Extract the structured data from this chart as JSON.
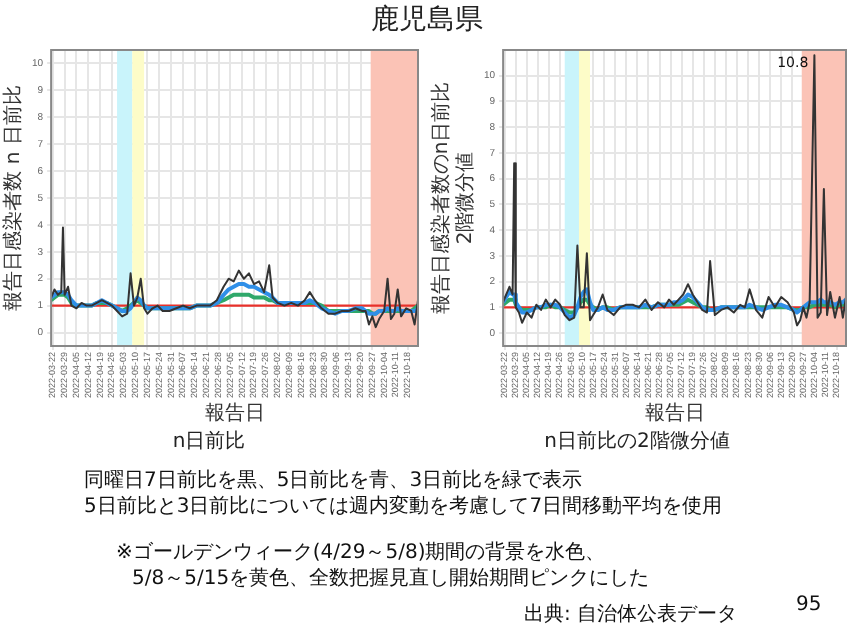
{
  "chart_data": [
    {
      "type": "line",
      "title": "n日前比",
      "xlabel": "報告日",
      "ylabel": "報告日感染者数 n 日前比",
      "x": [
        "2022-03-21",
        "2022-03-23",
        "2022-03-25",
        "2022-03-27",
        "2022-03-28",
        "2022-03-29",
        "2022-03-31",
        "2022-04-02",
        "2022-04-05",
        "2022-04-08",
        "2022-04-11",
        "2022-04-14",
        "2022-04-17",
        "2022-04-20",
        "2022-04-23",
        "2022-04-26",
        "2022-04-29",
        "2022-05-02",
        "2022-05-05",
        "2022-05-07",
        "2022-05-09",
        "2022-05-11",
        "2022-05-13",
        "2022-05-15",
        "2022-05-17",
        "2022-05-20",
        "2022-05-23",
        "2022-05-26",
        "2022-05-30",
        "2022-06-03",
        "2022-06-07",
        "2022-06-11",
        "2022-06-15",
        "2022-06-19",
        "2022-06-23",
        "2022-06-27",
        "2022-07-01",
        "2022-07-04",
        "2022-07-07",
        "2022-07-10",
        "2022-07-13",
        "2022-07-16",
        "2022-07-19",
        "2022-07-22",
        "2022-07-25",
        "2022-07-28",
        "2022-07-30",
        "2022-08-02",
        "2022-08-06",
        "2022-08-10",
        "2022-08-14",
        "2022-08-18",
        "2022-08-21",
        "2022-08-24",
        "2022-08-28",
        "2022-09-01",
        "2022-09-05",
        "2022-09-09",
        "2022-09-13",
        "2022-09-17",
        "2022-09-21",
        "2022-09-23",
        "2022-09-25",
        "2022-09-27",
        "2022-09-29",
        "2022-10-01",
        "2022-10-04",
        "2022-10-06",
        "2022-10-08",
        "2022-10-10",
        "2022-10-12",
        "2022-10-14",
        "2022-10-17",
        "2022-10-20",
        "2022-10-22",
        "2022-10-24"
      ],
      "series": [
        {
          "color": "#333333",
          "values": [
            1.3,
            1.6,
            1.4,
            1.5,
            3.9,
            1.4,
            1.7,
            1.0,
            0.9,
            1.1,
            1.0,
            1.0,
            1.1,
            1.2,
            1.1,
            1.0,
            0.8,
            0.6,
            0.7,
            2.2,
            1.0,
            1.3,
            2.0,
            0.9,
            0.7,
            0.9,
            1.0,
            0.8,
            0.8,
            0.9,
            1.0,
            0.9,
            1.0,
            1.0,
            1.0,
            1.2,
            1.7,
            2.0,
            1.9,
            2.3,
            2.0,
            2.2,
            1.8,
            1.9,
            1.5,
            2.5,
            1.3,
            1.1,
            1.0,
            1.1,
            1.0,
            1.2,
            1.5,
            1.2,
            0.9,
            0.7,
            0.7,
            0.8,
            0.8,
            0.9,
            0.8,
            0.8,
            0.3,
            0.6,
            0.2,
            0.5,
            0.8,
            2.0,
            0.5,
            0.7,
            1.6,
            0.6,
            0.9,
            0.8,
            0.3,
            1.2
          ]
        },
        {
          "color": "#2f8fe8",
          "values": [
            1.3,
            1.4,
            1.5,
            1.5,
            1.5,
            1.5,
            1.4,
            1.2,
            1.0,
            1.0,
            1.0,
            1.0,
            1.1,
            1.2,
            1.1,
            1.0,
            0.9,
            0.8,
            0.8,
            0.9,
            1.1,
            1.3,
            1.2,
            1.0,
            0.9,
            0.9,
            0.9,
            0.9,
            0.9,
            0.9,
            0.9,
            0.9,
            1.0,
            1.0,
            1.0,
            1.1,
            1.4,
            1.6,
            1.7,
            1.8,
            1.8,
            1.7,
            1.7,
            1.6,
            1.5,
            1.4,
            1.3,
            1.1,
            1.1,
            1.1,
            1.1,
            1.1,
            1.2,
            1.1,
            0.9,
            0.8,
            0.7,
            0.8,
            0.8,
            0.9,
            0.9,
            0.8,
            0.7,
            0.7,
            0.7,
            0.8,
            0.8,
            0.9,
            0.8,
            0.8,
            0.9,
            0.8,
            0.8,
            0.8,
            0.8,
            0.9
          ]
        },
        {
          "color": "#2fa86a",
          "values": [
            1.2,
            1.3,
            1.4,
            1.4,
            1.4,
            1.4,
            1.3,
            1.1,
            1.0,
            1.0,
            1.0,
            1.0,
            1.1,
            1.1,
            1.1,
            1.0,
            0.9,
            0.8,
            0.9,
            1.0,
            1.1,
            1.2,
            1.1,
            1.0,
            0.9,
            0.9,
            0.9,
            0.9,
            0.9,
            0.9,
            0.9,
            0.9,
            1.0,
            1.0,
            1.0,
            1.1,
            1.2,
            1.3,
            1.4,
            1.4,
            1.4,
            1.4,
            1.3,
            1.3,
            1.3,
            1.2,
            1.2,
            1.1,
            1.1,
            1.1,
            1.1,
            1.1,
            1.1,
            1.1,
            1.0,
            0.8,
            0.8,
            0.8,
            0.8,
            0.8,
            0.8,
            0.8,
            0.8,
            0.7,
            0.7,
            0.8,
            0.8,
            0.8,
            0.8,
            0.8,
            0.8,
            0.8,
            0.8,
            0.8,
            0.9,
            1.0
          ]
        }
      ],
      "xlim": [
        "2022-03-21",
        "2022-10-24"
      ],
      "xticks": [
        "2022-03-22",
        "2022-03-29",
        "2022-04-05",
        "2022-04-12",
        "2022-04-19",
        "2022-04-26",
        "2022-05-03",
        "2022-05-10",
        "2022-05-17",
        "2022-05-24",
        "2022-05-31",
        "2022-06-07",
        "2022-06-14",
        "2022-06-21",
        "2022-06-28",
        "2022-07-05",
        "2022-07-12",
        "2022-07-19",
        "2022-07-26",
        "2022-08-02",
        "2022-08-09",
        "2022-08-16",
        "2022-08-23",
        "2022-08-30",
        "2022-09-06",
        "2022-09-13",
        "2022-09-20",
        "2022-09-27",
        "2022-10-04",
        "2022-10-11",
        "2022-10-18"
      ],
      "ylim": [
        -0.5,
        10.5
      ],
      "yticks": [
        0,
        1,
        2,
        3,
        4,
        5,
        6,
        7,
        8,
        9,
        10
      ],
      "grid": true,
      "ref_lines": [
        {
          "axis": "y",
          "value": 1,
          "color": "#e8302a"
        }
      ],
      "bands": [
        {
          "axis": "x",
          "from": "2022-04-29",
          "to": "2022-05-08",
          "color": "#c9f4fb"
        },
        {
          "axis": "x",
          "from": "2022-05-08",
          "to": "2022-05-15",
          "color": "#fdfcc8"
        },
        {
          "axis": "x",
          "from": "2022-09-26",
          "to": "2022-10-24",
          "color": "#fbc3b6"
        }
      ]
    },
    {
      "type": "line",
      "title": "n日前比の2階微分値",
      "xlabel": "報告日",
      "ylabel": "報告日感染者数のn日前比\n2階微分値",
      "x": [
        "2022-03-21",
        "2022-03-23",
        "2022-03-25",
        "2022-03-27",
        "2022-03-28",
        "2022-03-29",
        "2022-03-31",
        "2022-04-02",
        "2022-04-05",
        "2022-04-08",
        "2022-04-11",
        "2022-04-14",
        "2022-04-17",
        "2022-04-20",
        "2022-04-23",
        "2022-04-26",
        "2022-04-29",
        "2022-05-02",
        "2022-05-05",
        "2022-05-07",
        "2022-05-09",
        "2022-05-11",
        "2022-05-13",
        "2022-05-15",
        "2022-05-17",
        "2022-05-20",
        "2022-05-23",
        "2022-05-26",
        "2022-05-30",
        "2022-06-03",
        "2022-06-07",
        "2022-06-11",
        "2022-06-15",
        "2022-06-19",
        "2022-06-23",
        "2022-06-27",
        "2022-07-01",
        "2022-07-04",
        "2022-07-07",
        "2022-07-10",
        "2022-07-13",
        "2022-07-16",
        "2022-07-19",
        "2022-07-22",
        "2022-07-25",
        "2022-07-28",
        "2022-07-30",
        "2022-08-02",
        "2022-08-06",
        "2022-08-10",
        "2022-08-14",
        "2022-08-18",
        "2022-08-21",
        "2022-08-24",
        "2022-08-28",
        "2022-09-01",
        "2022-09-05",
        "2022-09-09",
        "2022-09-13",
        "2022-09-17",
        "2022-09-21",
        "2022-09-23",
        "2022-09-25",
        "2022-09-27",
        "2022-09-29",
        "2022-10-01",
        "2022-10-04",
        "2022-10-06",
        "2022-10-08",
        "2022-10-10",
        "2022-10-12",
        "2022-10-14",
        "2022-10-17",
        "2022-10-20",
        "2022-10-22",
        "2022-10-24"
      ],
      "series": [
        {
          "color": "#333333",
          "values": [
            1.2,
            1.5,
            1.8,
            1.5,
            6.6,
            1.0,
            0.8,
            0.4,
            0.8,
            0.6,
            1.1,
            0.9,
            1.3,
            1.0,
            1.3,
            1.1,
            0.7,
            0.5,
            0.6,
            3.4,
            1.0,
            1.0,
            3.1,
            0.5,
            0.7,
            1.0,
            1.5,
            0.9,
            0.7,
            1.0,
            1.1,
            1.1,
            1.0,
            1.3,
            0.9,
            1.2,
            1.0,
            1.3,
            1.1,
            1.3,
            1.5,
            1.9,
            1.5,
            1.2,
            0.9,
            0.8,
            2.8,
            0.7,
            0.9,
            1.0,
            0.8,
            1.1,
            1.0,
            1.7,
            0.9,
            0.6,
            1.4,
            1.0,
            1.4,
            1.2,
            0.8,
            0.3,
            0.5,
            1.0,
            0.6,
            1.2,
            10.8,
            0.6,
            0.8,
            5.6,
            0.7,
            1.6,
            0.6,
            1.4,
            0.6,
            1.4
          ]
        },
        {
          "color": "#2f8fe8",
          "values": [
            1.2,
            1.4,
            1.6,
            1.5,
            1.5,
            1.2,
            1.0,
            0.8,
            0.8,
            0.9,
            1.0,
            1.0,
            1.1,
            1.1,
            1.1,
            1.0,
            0.8,
            0.6,
            0.7,
            1.0,
            1.4,
            1.6,
            1.7,
            1.2,
            0.9,
            0.9,
            1.0,
            0.9,
            0.9,
            1.0,
            1.0,
            1.0,
            1.0,
            1.1,
            1.0,
            1.1,
            1.1,
            1.1,
            1.2,
            1.2,
            1.3,
            1.5,
            1.4,
            1.2,
            1.0,
            0.9,
            0.9,
            0.9,
            1.0,
            1.0,
            1.0,
            1.0,
            1.0,
            1.1,
            1.0,
            0.9,
            1.0,
            1.1,
            1.1,
            1.0,
            0.9,
            0.8,
            0.9,
            1.0,
            1.1,
            1.2,
            1.2,
            1.2,
            1.3,
            1.2,
            1.2,
            1.2,
            1.1,
            1.2,
            1.2,
            1.3
          ]
        },
        {
          "color": "#2fa86a",
          "values": [
            1.1,
            1.2,
            1.3,
            1.3,
            1.3,
            1.1,
            1.0,
            0.9,
            0.9,
            0.9,
            1.0,
            1.0,
            1.0,
            1.1,
            1.0,
            1.0,
            0.9,
            0.8,
            0.8,
            1.0,
            1.2,
            1.3,
            1.3,
            1.1,
            1.0,
            0.9,
            1.0,
            1.0,
            0.9,
            1.0,
            1.0,
            1.0,
            1.0,
            1.0,
            1.0,
            1.1,
            1.1,
            1.1,
            1.1,
            1.1,
            1.2,
            1.3,
            1.2,
            1.1,
            1.0,
            1.0,
            0.9,
            0.9,
            1.0,
            1.0,
            1.0,
            1.0,
            1.0,
            1.0,
            1.0,
            1.0,
            1.0,
            1.0,
            1.0,
            1.0,
            0.9,
            0.9,
            0.9,
            1.0,
            1.0,
            1.0,
            1.1,
            1.1,
            1.1,
            1.1,
            1.1,
            1.1,
            1.0,
            1.1,
            1.1,
            1.1
          ]
        }
      ],
      "xlim": [
        "2022-03-21",
        "2022-10-24"
      ],
      "xticks": [
        "2022-03-22",
        "2022-03-29",
        "2022-04-05",
        "2022-04-12",
        "2022-04-19",
        "2022-04-26",
        "2022-05-03",
        "2022-05-10",
        "2022-05-17",
        "2022-05-24",
        "2022-05-31",
        "2022-06-07",
        "2022-06-14",
        "2022-06-21",
        "2022-06-28",
        "2022-07-05",
        "2022-07-12",
        "2022-07-19",
        "2022-07-26",
        "2022-08-02",
        "2022-08-09",
        "2022-08-16",
        "2022-08-23",
        "2022-08-30",
        "2022-09-06",
        "2022-09-13",
        "2022-09-20",
        "2022-09-27",
        "2022-10-04",
        "2022-10-11",
        "2022-10-18"
      ],
      "ylim": [
        -0.5,
        11
      ],
      "yticks": [
        0,
        1,
        2,
        3,
        4,
        5,
        6,
        7,
        8,
        9,
        10
      ],
      "grid": true,
      "ref_lines": [
        {
          "axis": "y",
          "value": 1,
          "color": "#e8302a"
        }
      ],
      "bands": [
        {
          "axis": "x",
          "from": "2022-04-29",
          "to": "2022-05-08",
          "color": "#c9f4fb"
        },
        {
          "axis": "x",
          "from": "2022-05-08",
          "to": "2022-05-15",
          "color": "#fdfcc8"
        },
        {
          "axis": "x",
          "from": "2022-09-26",
          "to": "2022-10-24",
          "color": "#fbc3b6"
        }
      ],
      "annotations": [
        {
          "text": "10.8",
          "x": "2022-10-04",
          "y": 10.8
        }
      ]
    },
    {
      "type": "other",
      "title": "鹿児島県",
      "annotations": [
        "同曜日7日前比を黒、5日前比を青、3日前比を緑で表示",
        "5日前比と3日前比については週内変動を考慮して7日間移動平均を使用",
        "※ゴールデンウィーク(4/29～5/8)期間の背景を水色、",
        "5/8～5/15を黄色、全数把握見直し開始期間ピンクにした",
        "出典: 自治体公表データ",
        "95"
      ]
    }
  ]
}
